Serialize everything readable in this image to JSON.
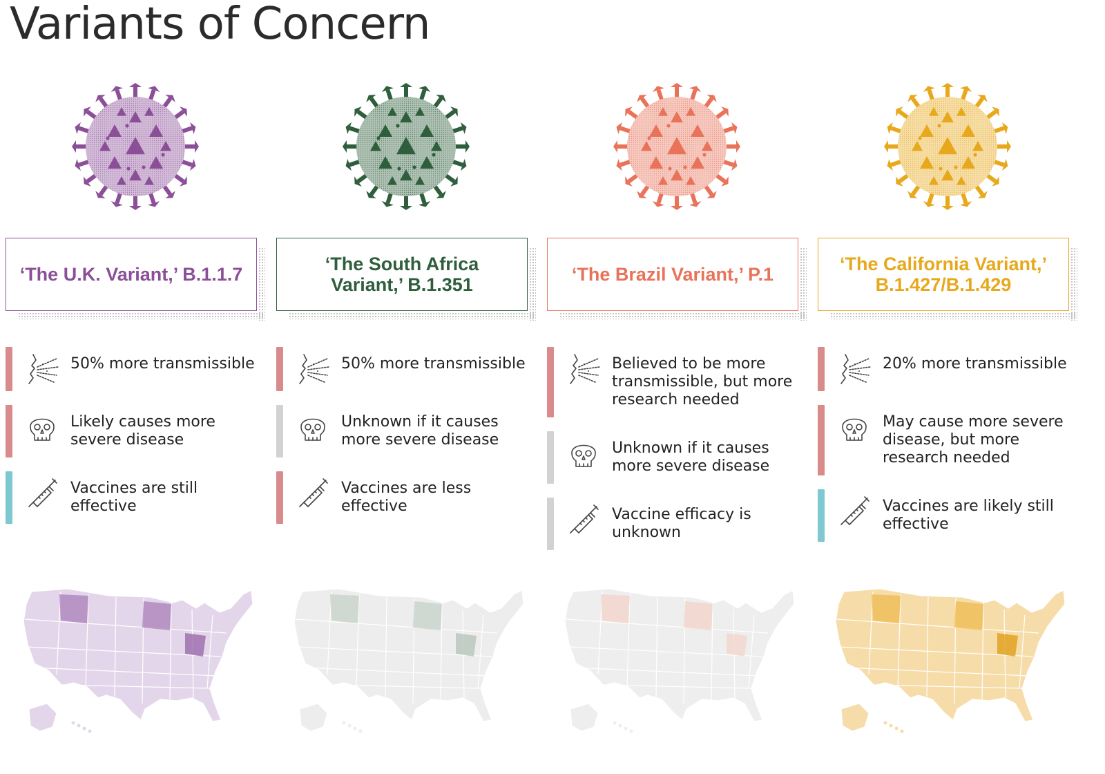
{
  "title": "Variants of Concern",
  "variants": [
    {
      "name": "‘The U.K. Variant,’ B.1.1.7",
      "color": "#8b4f98",
      "attributes": [
        {
          "icon": "sneeze-icon",
          "text": "50% more transmissible",
          "level_color": "#d98a8a"
        },
        {
          "icon": "skull-icon",
          "text": "Likely causes more severe disease",
          "level_color": "#d98a8a"
        },
        {
          "icon": "syringe-icon",
          "text": "Vaccines are still effective",
          "level_color": "#7ec8d2"
        }
      ]
    },
    {
      "name": "‘The South Africa Variant,’ B.1.351",
      "color": "#2e5e3c",
      "attributes": [
        {
          "icon": "sneeze-icon",
          "text": "50% more transmissible",
          "level_color": "#d98a8a"
        },
        {
          "icon": "skull-icon",
          "text": "Unknown if it causes more severe disease",
          "level_color": "#d2d2d2"
        },
        {
          "icon": "syringe-icon",
          "text": "Vaccines are less effective",
          "level_color": "#d98a8a"
        }
      ]
    },
    {
      "name": "‘The Brazil Variant,’ P.1",
      "color": "#e8735a",
      "attributes": [
        {
          "icon": "sneeze-icon",
          "text": "Believed to be more transmissible, but more research needed",
          "level_color": "#d98a8a"
        },
        {
          "icon": "skull-icon",
          "text": "Unknown if it causes more severe disease",
          "level_color": "#d2d2d2"
        },
        {
          "icon": "syringe-icon",
          "text": "Vaccine efficacy is unknown",
          "level_color": "#d2d2d2"
        }
      ]
    },
    {
      "name": "‘The California Variant,’ B.1.427/B.1.429",
      "color": "#e8a81c",
      "attributes": [
        {
          "icon": "sneeze-icon",
          "text": "20% more transmissible",
          "level_color": "#d98a8a"
        },
        {
          "icon": "skull-icon",
          "text": "May cause more severe disease, but more research needed",
          "level_color": "#d98a8a"
        },
        {
          "icon": "syringe-icon",
          "text": "Vaccines are likely still effective",
          "level_color": "#7ec8d2"
        }
      ]
    }
  ],
  "maps": [
    {
      "fill": "#e4d6ea",
      "highlight": "#b28abf",
      "dark": "#9a6aab"
    },
    {
      "fill": "#ededed",
      "highlight": "#c9d4cb",
      "dark": "#b7c6ba"
    },
    {
      "fill": "#eeeeee",
      "highlight": "#f2d6cc",
      "dark": "#f2d6cc"
    },
    {
      "fill": "#f6dca8",
      "highlight": "#efbf5a",
      "dark": "#e0a01a"
    }
  ]
}
